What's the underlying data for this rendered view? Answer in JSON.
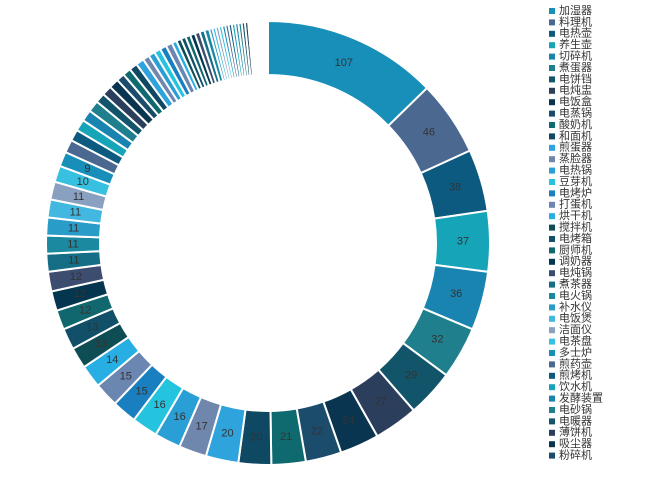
{
  "chart_data": {
    "type": "pie",
    "categories": [
      "加湿器",
      "料理机",
      "电热壶",
      "养生壶",
      "切碎机",
      "煮蛋器",
      "电饼铛",
      "电炖盅",
      "电饭盒",
      "电蒸锅",
      "酸奶机",
      "和面机",
      "煎蛋器",
      "蒸脸器",
      "电热锅",
      "豆芽机",
      "电烤炉",
      "打蛋机",
      "烘干机",
      "搅拌机",
      "电烤箱",
      "厨师机",
      "调奶器",
      "电炖锅",
      "煮茶器",
      "电火锅",
      "补水仪",
      "电饭煲",
      "洁面仪",
      "电茶盘",
      "多士炉",
      "煎药壶",
      "煎烤机",
      "饮水机",
      "发酵装置",
      "电砂锅",
      "电暖器",
      "薄饼机",
      "吸尘器",
      "粉碎机",
      null,
      null,
      null,
      null,
      null,
      null,
      null,
      null,
      null,
      null,
      null,
      null,
      null,
      null,
      null,
      null,
      null,
      null,
      null,
      null,
      null,
      null,
      null,
      null,
      null,
      null,
      null,
      null,
      null,
      null,
      null,
      null,
      null,
      null,
      null,
      null,
      null,
      null,
      null,
      null
    ],
    "values": [
      107,
      46,
      38,
      37,
      36,
      32,
      29,
      27,
      24,
      22,
      21,
      20,
      20,
      17,
      16,
      16,
      15,
      15,
      14,
      13,
      13,
      12,
      12,
      12,
      11,
      11,
      11,
      11,
      11,
      10,
      9,
      8,
      7,
      7,
      7,
      7,
      6,
      6,
      6,
      5,
      5,
      5,
      5,
      4,
      4,
      4,
      4,
      4,
      3,
      3,
      3,
      3,
      3,
      3,
      3,
      3,
      2,
      2,
      2,
      2,
      2,
      2,
      2,
      2,
      2,
      2,
      2,
      2,
      1,
      1,
      1,
      1,
      1,
      1,
      1,
      1,
      1,
      1,
      1,
      1
    ],
    "colors": [
      "#178fb9",
      "#4b6890",
      "#0d5a80",
      "#15a4b8",
      "#1a84b0",
      "#1f7f8c",
      "#12546a",
      "#2b3e5c",
      "#0a3550",
      "#1c4c6c",
      "#0f6a70",
      "#0e4862",
      "#2ea3dc",
      "#6f86ad",
      "#2a9fd6",
      "#24c4de",
      "#1a7fbf",
      "#6b86b0",
      "#27aee3",
      "#0f4d55",
      "#115068",
      "#10686e",
      "#053650",
      "#3c4d70",
      "#156e86",
      "#1b8aa0",
      "#2a9cc8",
      "#42b8e0",
      "#8aa0c0",
      "#38c0e0"
    ]
  }
}
